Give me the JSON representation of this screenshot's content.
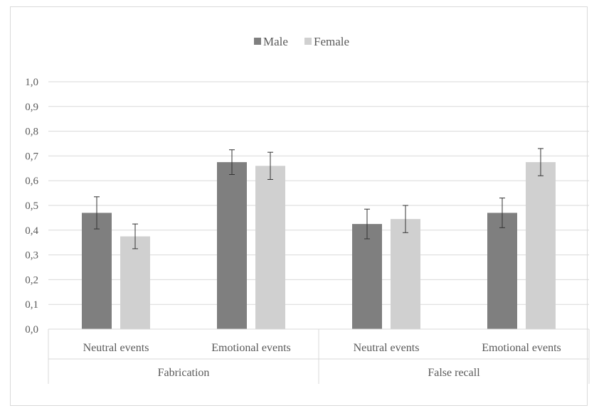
{
  "chart_data": {
    "type": "bar",
    "groups": [
      "Fabrication",
      "False recall"
    ],
    "categories": [
      "Neutral events",
      "Emotional events",
      "Neutral events",
      "Emotional events"
    ],
    "category_groups": [
      0,
      0,
      1,
      1
    ],
    "series": [
      {
        "name": "Male",
        "color": "#7f7f7f",
        "values": [
          0.47,
          0.675,
          0.425,
          0.47
        ],
        "errors": [
          0.065,
          0.05,
          0.06,
          0.06
        ]
      },
      {
        "name": "Female",
        "color": "#d0d0d0",
        "values": [
          0.375,
          0.66,
          0.445,
          0.675
        ],
        "errors": [
          0.05,
          0.055,
          0.055,
          0.055
        ]
      }
    ],
    "title": "",
    "xlabel": "",
    "ylabel": "",
    "ylim": [
      0,
      1.0
    ],
    "yticks": [
      "0,0",
      "0,1",
      "0,2",
      "0,3",
      "0,4",
      "0,5",
      "0,6",
      "0,7",
      "0,8",
      "0,9",
      "1,0"
    ],
    "grid": true,
    "legend": "top-center"
  }
}
